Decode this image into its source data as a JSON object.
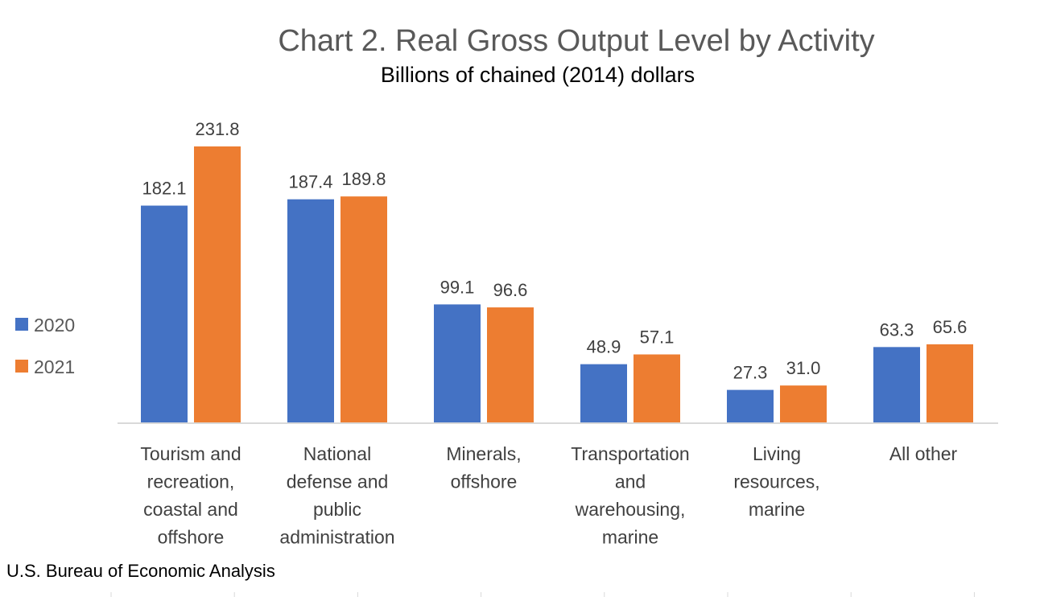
{
  "chart_data": {
    "type": "bar",
    "title": "Chart 2. Real Gross Output Level by Activity",
    "subtitle": "Billions of chained (2014) dollars",
    "categories": [
      [
        "Tourism and",
        "recreation,",
        "coastal and",
        "offshore"
      ],
      [
        "National",
        "defense and",
        "public",
        "administration"
      ],
      [
        "Minerals,",
        "offshore"
      ],
      [
        "Transportation",
        "and",
        "warehousing,",
        "marine"
      ],
      [
        "Living",
        "resources,",
        "marine"
      ],
      [
        "All other"
      ]
    ],
    "series": [
      {
        "name": "2020",
        "color": "#4472C4",
        "values": [
          182.1,
          187.4,
          99.1,
          48.9,
          27.3,
          63.3
        ],
        "labels": [
          "182.1",
          "187.4",
          "99.1",
          "48.9",
          "27.3",
          "63.3"
        ]
      },
      {
        "name": "2021",
        "color": "#ED7D31",
        "values": [
          231.8,
          189.8,
          96.6,
          57.1,
          31.0,
          65.6
        ],
        "labels": [
          "231.8",
          "189.8",
          "96.6",
          "57.1",
          "31.0",
          "65.6"
        ]
      }
    ],
    "xlabel": "",
    "ylabel": "",
    "ylim": [
      0,
      250
    ],
    "grid": false,
    "legend": "left",
    "source": "U.S. Bureau of Economic Analysis"
  }
}
